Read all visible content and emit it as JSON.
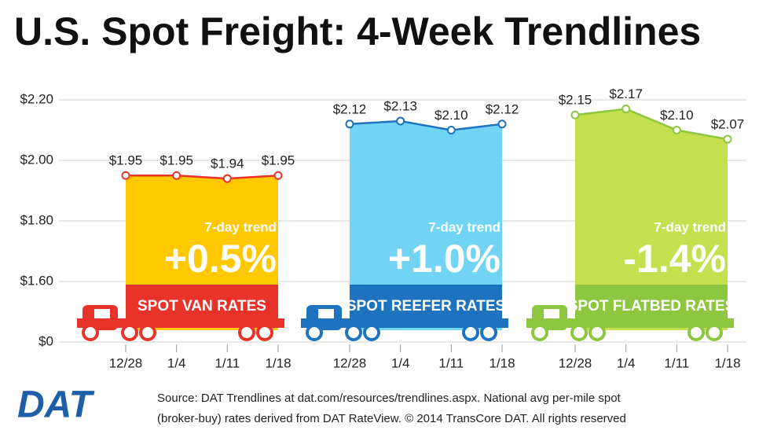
{
  "title": "U.S. Spot Freight: 4-Week Trendlines",
  "logo": "DAT",
  "source": [
    "Source: DAT Trendlines at dat.com/resources/trendlines.aspx. National avg per-mile spot",
    "(broker-buy) rates derived from DAT RateView. © 2014 TransCore DAT. All rights reserved"
  ],
  "chart_data": {
    "type": "area",
    "ylim": [
      1.4,
      2.2
    ],
    "axis_break": true,
    "grid": true,
    "yticks": [
      {
        "value": 0,
        "label": "$0"
      },
      {
        "value": 1.6,
        "label": "$1.60"
      },
      {
        "value": 1.8,
        "label": "$1.80"
      },
      {
        "value": 2.0,
        "label": "$2.00"
      },
      {
        "value": 2.2,
        "label": "$2.20"
      }
    ],
    "panels": [
      {
        "name": "SPOT VAN RATES",
        "categories": [
          "12/28",
          "1/4",
          "1/11",
          "1/18"
        ],
        "values": [
          1.95,
          1.95,
          1.94,
          1.95
        ],
        "value_labels": [
          "$1.95",
          "$1.95",
          "$1.94",
          "$1.95"
        ],
        "fill": "#ffc800",
        "color": "#e8332a",
        "trend_label": "7-day trend",
        "trend": "+0.5%"
      },
      {
        "name": "SPOT REEFER RATES",
        "categories": [
          "12/28",
          "1/4",
          "1/11",
          "1/18"
        ],
        "values": [
          2.12,
          2.13,
          2.1,
          2.12
        ],
        "value_labels": [
          "$2.12",
          "$2.13",
          "$2.10",
          "$2.12"
        ],
        "fill": "#72d4f5",
        "color": "#1e73be",
        "trend_label": "7-day trend",
        "trend": "+1.0%"
      },
      {
        "name": "SPOT FLATBED RATES",
        "categories": [
          "12/28",
          "1/4",
          "1/11",
          "1/18"
        ],
        "values": [
          2.15,
          2.17,
          2.1,
          2.07
        ],
        "value_labels": [
          "$2.15",
          "$2.17",
          "$2.10",
          "$2.07"
        ],
        "fill": "#c5e04e",
        "color": "#8dc63f",
        "trend_label": "7-day trend",
        "trend": "-1.4%"
      }
    ]
  }
}
